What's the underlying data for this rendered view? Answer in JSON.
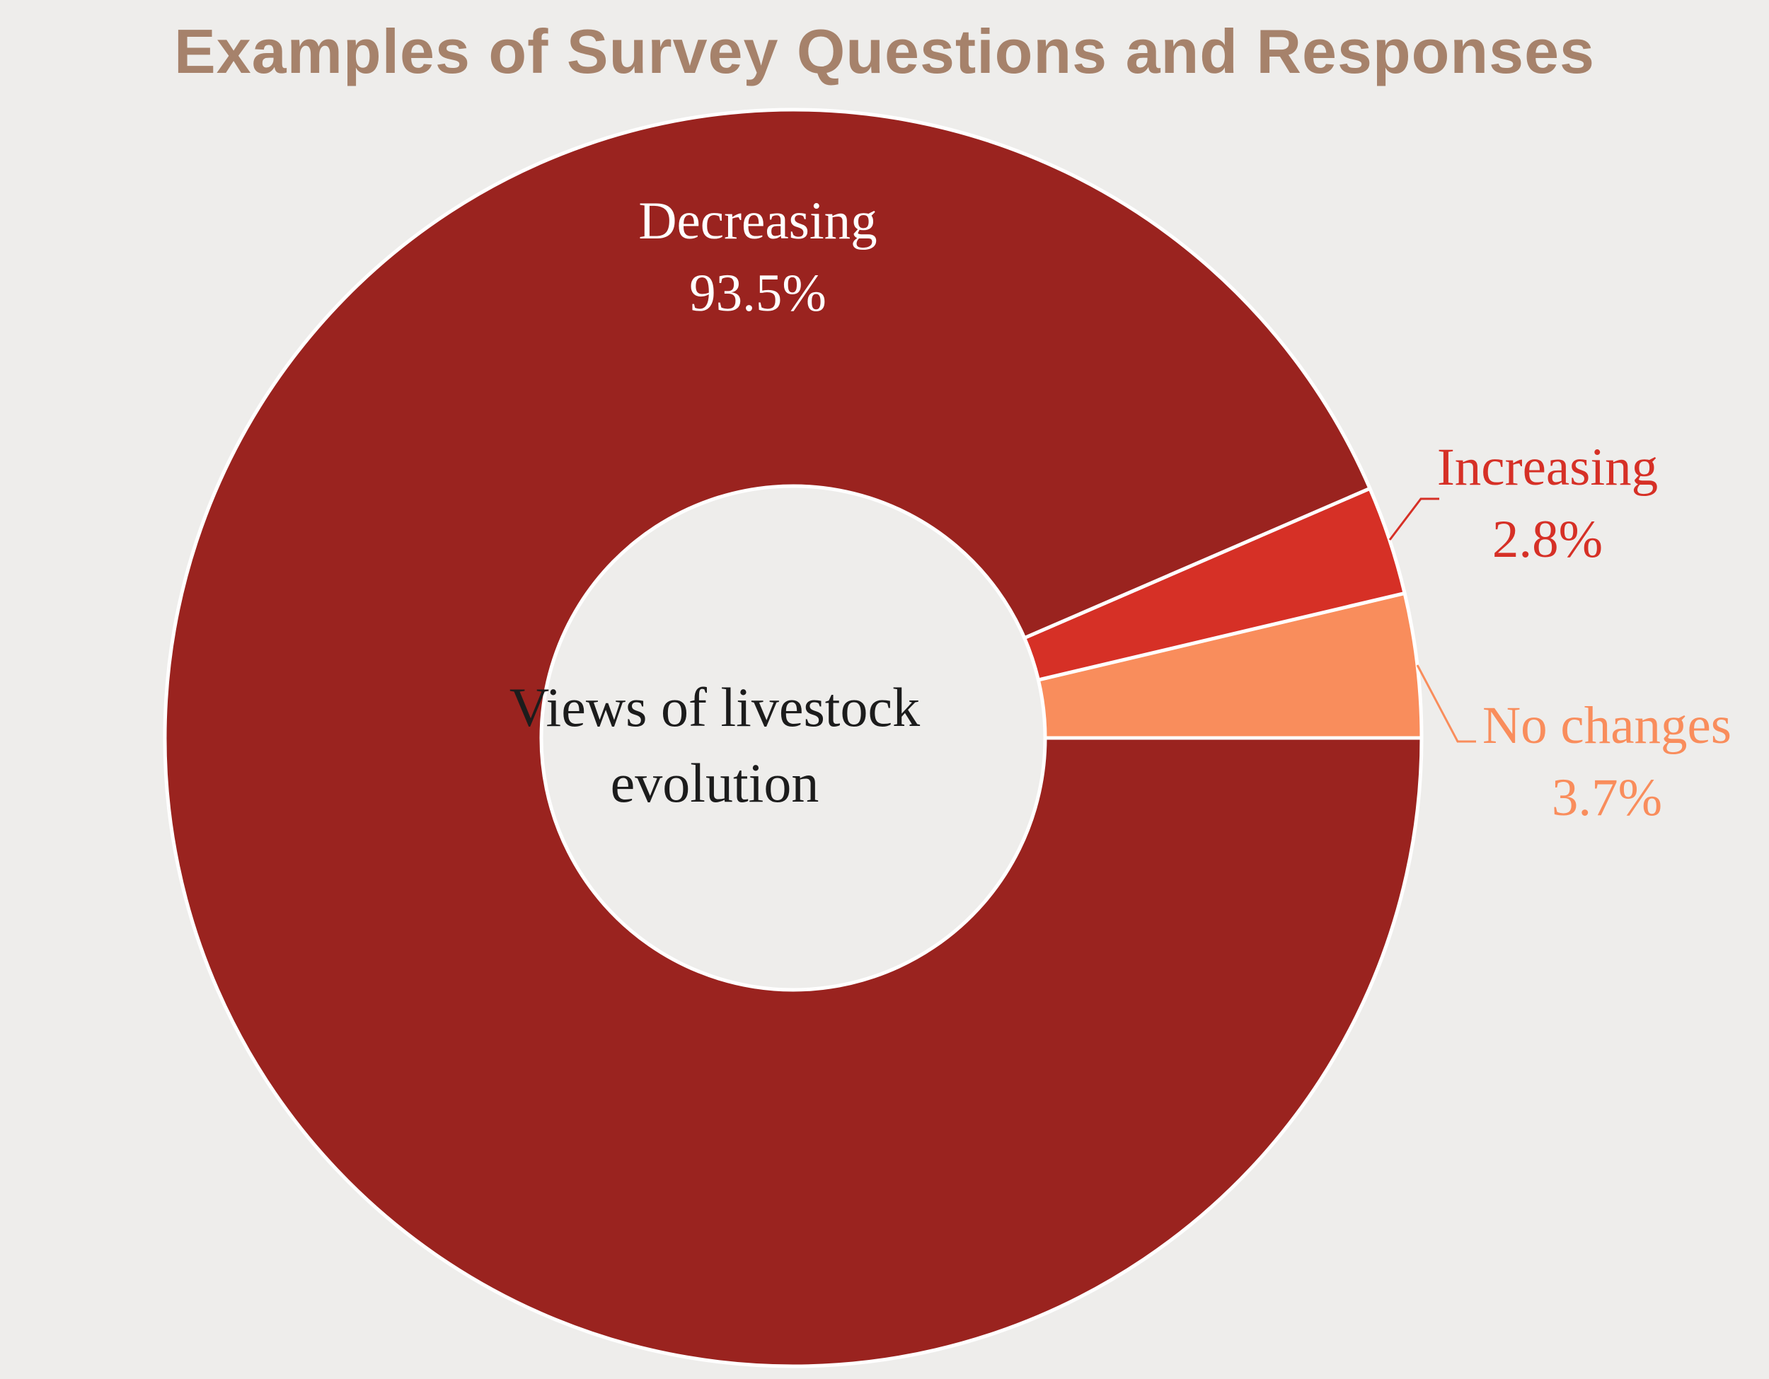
{
  "page": {
    "background_color": "#EEEDEB"
  },
  "header": {
    "title": "Examples of Survey Questions and Responses",
    "color": "#A6826B"
  },
  "chart_data": {
    "type": "pie",
    "donut": true,
    "title": "Examples of Survey Questions and Responses",
    "unit": "%",
    "legend": "none",
    "start_angle_deg": 0,
    "direction": "small slices stacked counterclockwise from 3 o'clock",
    "center_label_lines": [
      "Views of livestock",
      "evolution"
    ],
    "center_label_color": "#1C1C1C",
    "slice_border_color": "#FFFFFF",
    "slices": [
      {
        "name": "Decreasing",
        "value": 93.5,
        "pct_label": "93.5%",
        "color": "#9A231F",
        "label_color": "#FFFFFF",
        "label_placement": "inside"
      },
      {
        "name": "Increasing",
        "value": 2.8,
        "pct_label": "2.8%",
        "color": "#D63026",
        "label_color": "#D63026",
        "label_placement": "outside-with-leader"
      },
      {
        "name": "No changes",
        "value": 3.7,
        "pct_label": "3.7%",
        "color": "#F98D5C",
        "label_color": "#F98D5C",
        "label_placement": "outside-with-leader"
      }
    ]
  }
}
